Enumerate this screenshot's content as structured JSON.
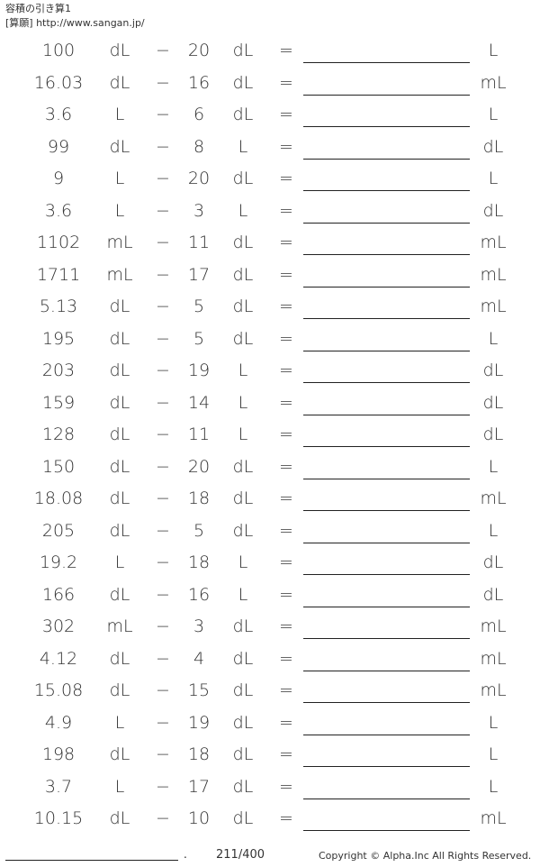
{
  "header": {
    "title": "容積の引き算1",
    "site": "[算願] http://www.sangan.jp/"
  },
  "operator": "−",
  "equals": "=",
  "problems": [
    {
      "a": "100",
      "u1": "dL",
      "b": "20",
      "u2": "dL",
      "ua": "L"
    },
    {
      "a": "16.03",
      "u1": "dL",
      "b": "16",
      "u2": "dL",
      "ua": "mL"
    },
    {
      "a": "3.6",
      "u1": "L",
      "b": "6",
      "u2": "dL",
      "ua": "L"
    },
    {
      "a": "99",
      "u1": "dL",
      "b": "8",
      "u2": "L",
      "ua": "dL"
    },
    {
      "a": "9",
      "u1": "L",
      "b": "20",
      "u2": "dL",
      "ua": "L"
    },
    {
      "a": "3.6",
      "u1": "L",
      "b": "3",
      "u2": "L",
      "ua": "dL"
    },
    {
      "a": "1102",
      "u1": "mL",
      "b": "11",
      "u2": "dL",
      "ua": "mL"
    },
    {
      "a": "1711",
      "u1": "mL",
      "b": "17",
      "u2": "dL",
      "ua": "mL"
    },
    {
      "a": "5.13",
      "u1": "dL",
      "b": "5",
      "u2": "dL",
      "ua": "mL"
    },
    {
      "a": "195",
      "u1": "dL",
      "b": "5",
      "u2": "dL",
      "ua": "L"
    },
    {
      "a": "203",
      "u1": "dL",
      "b": "19",
      "u2": "L",
      "ua": "dL"
    },
    {
      "a": "159",
      "u1": "dL",
      "b": "14",
      "u2": "L",
      "ua": "dL"
    },
    {
      "a": "128",
      "u1": "dL",
      "b": "11",
      "u2": "L",
      "ua": "dL"
    },
    {
      "a": "150",
      "u1": "dL",
      "b": "20",
      "u2": "dL",
      "ua": "L"
    },
    {
      "a": "18.08",
      "u1": "dL",
      "b": "18",
      "u2": "dL",
      "ua": "mL"
    },
    {
      "a": "205",
      "u1": "dL",
      "b": "5",
      "u2": "dL",
      "ua": "L"
    },
    {
      "a": "19.2",
      "u1": "L",
      "b": "18",
      "u2": "L",
      "ua": "dL"
    },
    {
      "a": "166",
      "u1": "dL",
      "b": "16",
      "u2": "L",
      "ua": "dL"
    },
    {
      "a": "302",
      "u1": "mL",
      "b": "3",
      "u2": "dL",
      "ua": "mL"
    },
    {
      "a": "4.12",
      "u1": "dL",
      "b": "4",
      "u2": "dL",
      "ua": "mL"
    },
    {
      "a": "15.08",
      "u1": "dL",
      "b": "15",
      "u2": "dL",
      "ua": "mL"
    },
    {
      "a": "4.9",
      "u1": "L",
      "b": "19",
      "u2": "dL",
      "ua": "L"
    },
    {
      "a": "198",
      "u1": "dL",
      "b": "18",
      "u2": "dL",
      "ua": "L"
    },
    {
      "a": "3.7",
      "u1": "L",
      "b": "17",
      "u2": "dL",
      "ua": "L"
    },
    {
      "a": "10.15",
      "u1": "dL",
      "b": "10",
      "u2": "dL",
      "ua": "mL"
    }
  ],
  "footer": {
    "dot": ".",
    "page": "211/400",
    "copyright": "Copyright © Alpha.Inc All Rights Reserved."
  }
}
